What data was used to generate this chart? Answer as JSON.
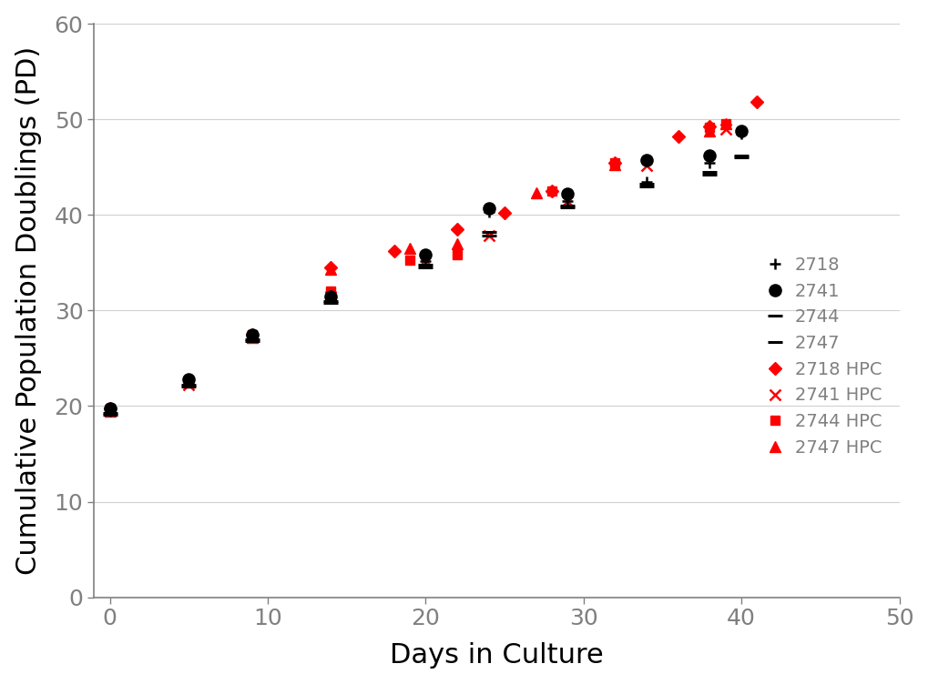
{
  "title": "",
  "xlabel": "Days in Culture",
  "ylabel": "Cumulative Population Doublings (PD)",
  "xlim": [
    -1,
    50
  ],
  "ylim": [
    0,
    60
  ],
  "xticks": [
    0,
    10,
    20,
    30,
    40,
    50
  ],
  "yticks": [
    0,
    10,
    20,
    30,
    40,
    50,
    60
  ],
  "series": {
    "n2718": {
      "x": [
        0,
        5,
        9,
        14,
        20,
        24,
        29,
        34,
        38,
        40
      ],
      "y": [
        19.5,
        22.5,
        27.3,
        31.3,
        35.2,
        40.3,
        41.5,
        43.5,
        45.5,
        48.5
      ],
      "color": "black",
      "marker": "+",
      "markersize": 9,
      "markeredgewidth": 1.8,
      "zorder": 5,
      "label": "2718"
    },
    "n2741": {
      "x": [
        0,
        5,
        9,
        14,
        20,
        24,
        29,
        34,
        38,
        40
      ],
      "y": [
        19.8,
        22.8,
        27.5,
        31.5,
        35.8,
        40.7,
        42.2,
        45.7,
        46.2,
        48.8
      ],
      "color": "black",
      "marker": "o",
      "markersize": 9,
      "markeredgewidth": 1.5,
      "zorder": 5,
      "label": "2741"
    },
    "n2744": {
      "x": [
        0,
        5,
        9,
        14,
        20,
        24,
        29,
        34,
        38,
        40
      ],
      "y": [
        19.3,
        22.2,
        27.0,
        31.0,
        34.8,
        38.2,
        41.0,
        43.3,
        44.5,
        46.2
      ],
      "color": "black",
      "marker": "_",
      "markersize": 11,
      "markeredgewidth": 2.2,
      "zorder": 5,
      "label": "2744"
    },
    "n2747": {
      "x": [
        0,
        5,
        9,
        14,
        20,
        24,
        29,
        34,
        38,
        40
      ],
      "y": [
        19.1,
        22.0,
        26.8,
        30.8,
        34.5,
        37.8,
        40.8,
        43.0,
        44.2,
        46.0
      ],
      "color": "black",
      "marker": "_",
      "markersize": 11,
      "markeredgewidth": 2.2,
      "zorder": 5,
      "label": "2747"
    },
    "h2718": {
      "x": [
        0,
        9,
        14,
        18,
        22,
        25,
        28,
        32,
        36,
        38,
        41
      ],
      "y": [
        19.8,
        27.5,
        34.5,
        36.2,
        38.5,
        40.2,
        42.5,
        45.5,
        48.2,
        49.3,
        51.8
      ],
      "color": "red",
      "marker": "D",
      "markersize": 7,
      "markeredgewidth": 1.0,
      "zorder": 4,
      "label": "2718 HPC"
    },
    "h2741": {
      "x": [
        0,
        5,
        9,
        14,
        20,
        24,
        29,
        34,
        39
      ],
      "y": [
        19.5,
        22.2,
        27.2,
        31.5,
        35.3,
        37.8,
        41.5,
        45.2,
        49.0
      ],
      "color": "red",
      "marker": "x",
      "markersize": 9,
      "markeredgewidth": 1.8,
      "zorder": 4,
      "label": "2741 HPC"
    },
    "h2744": {
      "x": [
        0,
        5,
        9,
        14,
        19,
        22,
        28,
        32,
        38,
        39
      ],
      "y": [
        19.8,
        22.5,
        27.5,
        32.0,
        35.3,
        35.8,
        42.5,
        45.5,
        49.2,
        49.5
      ],
      "color": "red",
      "marker": "s",
      "markersize": 7,
      "markeredgewidth": 1.0,
      "zorder": 4,
      "label": "2744 HPC"
    },
    "h2747": {
      "x": [
        0,
        5,
        9,
        14,
        19,
        22,
        27,
        32,
        38,
        39
      ],
      "y": [
        19.5,
        22.5,
        27.2,
        34.3,
        36.5,
        37.0,
        42.3,
        45.3,
        48.8,
        49.5
      ],
      "color": "red",
      "marker": "^",
      "markersize": 8,
      "markeredgewidth": 1.0,
      "zorder": 4,
      "label": "2747 HPC"
    }
  },
  "legend_fontsize": 14,
  "axis_label_fontsize": 22,
  "tick_fontsize": 18,
  "tick_color": "#808080",
  "axis_color": "#808080",
  "background_color": "#ffffff",
  "grid_color": "#d0d0d0",
  "grid_linewidth": 0.8
}
